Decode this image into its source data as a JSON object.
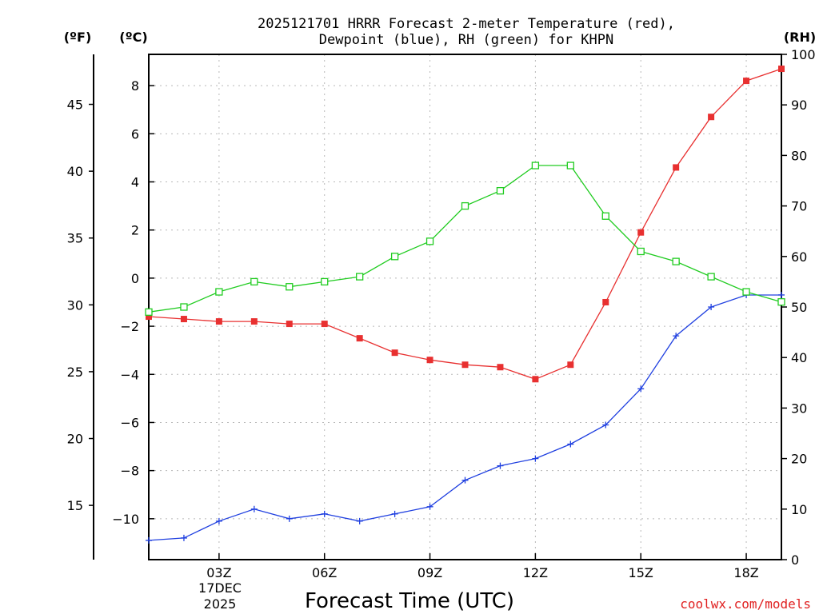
{
  "chart_data": {
    "type": "line",
    "title": [
      "2025121701 HRRR Forecast 2-meter Temperature (red),",
      "Dewpoint (blue), RH (green) for KHPN"
    ],
    "xlabel": "Forecast Time (UTC)",
    "units": {
      "fahrenheit": "(ºF)",
      "celsius": "(ºC)",
      "rh": "(RH)"
    },
    "credit": "coolwx.com/models",
    "x_hours": [
      1,
      2,
      3,
      4,
      5,
      6,
      7,
      8,
      9,
      10,
      11,
      12,
      13,
      14,
      15,
      16,
      17,
      18,
      19
    ],
    "xlim": [
      1,
      19
    ],
    "x_ticks": [
      {
        "hour": 3,
        "label": "03Z"
      },
      {
        "hour": 6,
        "label": "06Z"
      },
      {
        "hour": 9,
        "label": "09Z"
      },
      {
        "hour": 12,
        "label": "12Z"
      },
      {
        "hour": 15,
        "label": "15Z"
      },
      {
        "hour": 18,
        "label": "18Z"
      }
    ],
    "date_label": [
      "17DEC",
      "2025"
    ],
    "ylim_c": [
      -11.7,
      9.3
    ],
    "y_ticks_c": [
      -10,
      -8,
      -6,
      -4,
      -2,
      0,
      2,
      4,
      6,
      8
    ],
    "y_ticks_f": [
      15,
      20,
      25,
      30,
      35,
      40,
      45
    ],
    "ylim_rh": [
      0,
      100
    ],
    "y_ticks_rh": [
      0,
      10,
      20,
      30,
      40,
      50,
      60,
      70,
      80,
      90,
      100
    ],
    "series": [
      {
        "name": "Temperature",
        "color": "#e83030",
        "marker": "filled-square",
        "axis": "celsius",
        "values": [
          -1.6,
          -1.7,
          -1.8,
          -1.8,
          -1.9,
          -1.9,
          -2.5,
          -3.1,
          -3.4,
          -3.6,
          -3.7,
          -4.2,
          -3.6,
          -1.0,
          1.9,
          4.6,
          6.7,
          8.2,
          8.7
        ]
      },
      {
        "name": "Dewpoint",
        "color": "#2040e0",
        "marker": "plus",
        "axis": "celsius",
        "values": [
          -10.9,
          -10.8,
          -10.1,
          -9.6,
          -10.0,
          -9.8,
          -10.1,
          -9.8,
          -9.5,
          -8.4,
          -7.8,
          -7.5,
          -6.9,
          -6.1,
          -4.6,
          -2.4,
          -1.2,
          -0.7,
          -0.7
        ]
      },
      {
        "name": "RH",
        "color": "#20cc20",
        "marker": "open-square",
        "axis": "rh",
        "values": [
          49,
          50,
          53,
          55,
          54,
          55,
          56,
          60,
          63,
          70,
          73,
          78,
          78,
          68,
          61,
          59,
          56,
          53,
          51
        ]
      }
    ]
  }
}
